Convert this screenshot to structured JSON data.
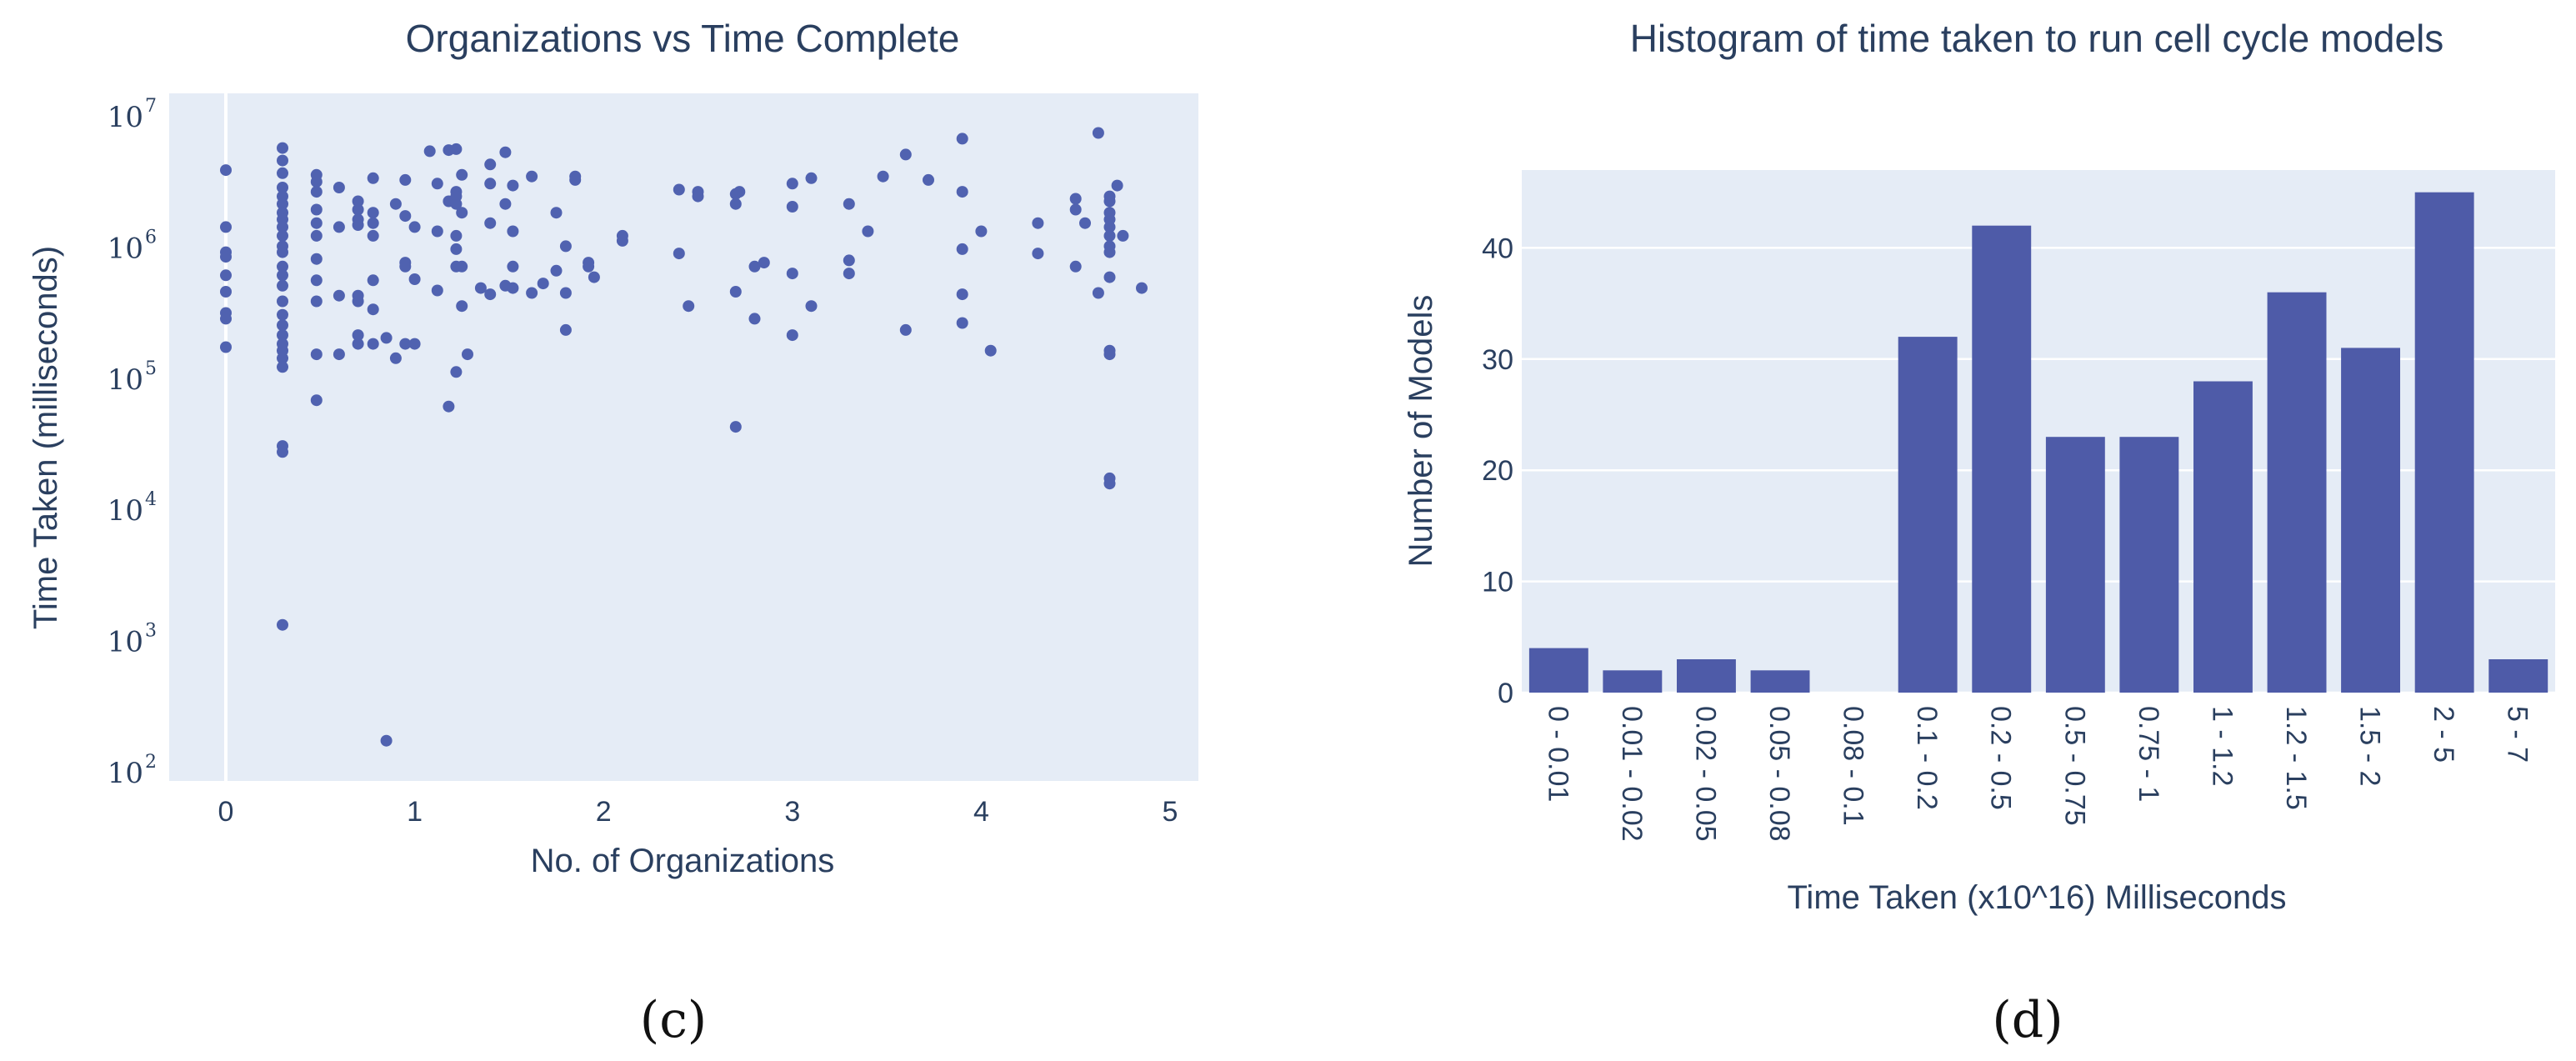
{
  "chart_data": [
    {
      "type": "scatter",
      "title": "Organizations vs Time Complete",
      "xlabel": "No. of Organizations",
      "ylabel": "Time Taken (milliseconds)",
      "x_ticks": [
        "0",
        "1",
        "2",
        "3",
        "4",
        "5"
      ],
      "xlim": [
        -0.3,
        5.15
      ],
      "y_scale": "log",
      "y_tick_exponents": [
        "2",
        "3",
        "4",
        "5",
        "6",
        "7"
      ],
      "y_tick_base": "10",
      "ylim": [
        100,
        10000000
      ],
      "grid": "vertical zero line only",
      "color": "#5062b0",
      "points": [
        {
          "x": 0,
          "y": 3800000
        },
        {
          "x": 0,
          "y": 1400000
        },
        {
          "x": 0,
          "y": 900000
        },
        {
          "x": 0,
          "y": 830000
        },
        {
          "x": 0,
          "y": 600000
        },
        {
          "x": 0,
          "y": 450000
        },
        {
          "x": 0,
          "y": 310000
        },
        {
          "x": 0,
          "y": 280000
        },
        {
          "x": 0,
          "y": 170000
        },
        {
          "x": 0.3,
          "y": 5600000
        },
        {
          "x": 0.3,
          "y": 4500000
        },
        {
          "x": 0.3,
          "y": 3600000
        },
        {
          "x": 0.3,
          "y": 2800000
        },
        {
          "x": 0.3,
          "y": 2400000
        },
        {
          "x": 0.3,
          "y": 2100000
        },
        {
          "x": 0.3,
          "y": 1800000
        },
        {
          "x": 0.3,
          "y": 1600000
        },
        {
          "x": 0.3,
          "y": 1400000
        },
        {
          "x": 0.3,
          "y": 1200000
        },
        {
          "x": 0.3,
          "y": 1000000
        },
        {
          "x": 0.3,
          "y": 900000
        },
        {
          "x": 0.3,
          "y": 700000
        },
        {
          "x": 0.3,
          "y": 600000
        },
        {
          "x": 0.3,
          "y": 500000
        },
        {
          "x": 0.3,
          "y": 380000
        },
        {
          "x": 0.3,
          "y": 300000
        },
        {
          "x": 0.3,
          "y": 250000
        },
        {
          "x": 0.3,
          "y": 210000
        },
        {
          "x": 0.3,
          "y": 180000
        },
        {
          "x": 0.3,
          "y": 160000
        },
        {
          "x": 0.3,
          "y": 140000
        },
        {
          "x": 0.3,
          "y": 120000
        },
        {
          "x": 0.3,
          "y": 30000
        },
        {
          "x": 0.3,
          "y": 27000
        },
        {
          "x": 0.3,
          "y": 1300
        },
        {
          "x": 0.48,
          "y": 3500000
        },
        {
          "x": 0.48,
          "y": 3100000
        },
        {
          "x": 0.48,
          "y": 2600000
        },
        {
          "x": 0.48,
          "y": 1900000
        },
        {
          "x": 0.48,
          "y": 1500000
        },
        {
          "x": 0.48,
          "y": 1200000
        },
        {
          "x": 0.48,
          "y": 800000
        },
        {
          "x": 0.48,
          "y": 550000
        },
        {
          "x": 0.48,
          "y": 380000
        },
        {
          "x": 0.48,
          "y": 150000
        },
        {
          "x": 0.48,
          "y": 67000
        },
        {
          "x": 0.6,
          "y": 2800000
        },
        {
          "x": 0.6,
          "y": 1400000
        },
        {
          "x": 0.6,
          "y": 420000
        },
        {
          "x": 0.6,
          "y": 150000
        },
        {
          "x": 0.7,
          "y": 2200000
        },
        {
          "x": 0.7,
          "y": 1900000
        },
        {
          "x": 0.7,
          "y": 1600000
        },
        {
          "x": 0.7,
          "y": 1450000
        },
        {
          "x": 0.7,
          "y": 420000
        },
        {
          "x": 0.7,
          "y": 380000
        },
        {
          "x": 0.7,
          "y": 210000
        },
        {
          "x": 0.7,
          "y": 180000
        },
        {
          "x": 0.78,
          "y": 3300000
        },
        {
          "x": 0.78,
          "y": 1800000
        },
        {
          "x": 0.78,
          "y": 1500000
        },
        {
          "x": 0.78,
          "y": 1200000
        },
        {
          "x": 0.78,
          "y": 550000
        },
        {
          "x": 0.78,
          "y": 330000
        },
        {
          "x": 0.78,
          "y": 180000
        },
        {
          "x": 0.85,
          "y": 170
        },
        {
          "x": 0.85,
          "y": 200000
        },
        {
          "x": 0.9,
          "y": 2100000
        },
        {
          "x": 0.9,
          "y": 140000
        },
        {
          "x": 0.95,
          "y": 3200000
        },
        {
          "x": 0.95,
          "y": 1700000
        },
        {
          "x": 0.95,
          "y": 750000
        },
        {
          "x": 0.95,
          "y": 700000
        },
        {
          "x": 0.95,
          "y": 180000
        },
        {
          "x": 1.0,
          "y": 1400000
        },
        {
          "x": 1.0,
          "y": 560000
        },
        {
          "x": 1.0,
          "y": 180000
        },
        {
          "x": 1.08,
          "y": 5300000
        },
        {
          "x": 1.12,
          "y": 3000000
        },
        {
          "x": 1.12,
          "y": 1300000
        },
        {
          "x": 1.12,
          "y": 460000
        },
        {
          "x": 1.18,
          "y": 5400000
        },
        {
          "x": 1.18,
          "y": 2200000
        },
        {
          "x": 1.18,
          "y": 60000
        },
        {
          "x": 1.22,
          "y": 5500000
        },
        {
          "x": 1.22,
          "y": 2600000
        },
        {
          "x": 1.22,
          "y": 2400000
        },
        {
          "x": 1.22,
          "y": 2100000
        },
        {
          "x": 1.22,
          "y": 1200000
        },
        {
          "x": 1.22,
          "y": 950000
        },
        {
          "x": 1.22,
          "y": 700000
        },
        {
          "x": 1.22,
          "y": 110000
        },
        {
          "x": 1.25,
          "y": 3500000
        },
        {
          "x": 1.25,
          "y": 1800000
        },
        {
          "x": 1.25,
          "y": 700000
        },
        {
          "x": 1.25,
          "y": 350000
        },
        {
          "x": 1.28,
          "y": 150000
        },
        {
          "x": 1.35,
          "y": 480000
        },
        {
          "x": 1.4,
          "y": 4200000
        },
        {
          "x": 1.4,
          "y": 3000000
        },
        {
          "x": 1.4,
          "y": 1500000
        },
        {
          "x": 1.4,
          "y": 430000
        },
        {
          "x": 1.48,
          "y": 5200000
        },
        {
          "x": 1.48,
          "y": 2100000
        },
        {
          "x": 1.48,
          "y": 500000
        },
        {
          "x": 1.52,
          "y": 2900000
        },
        {
          "x": 1.52,
          "y": 1300000
        },
        {
          "x": 1.52,
          "y": 700000
        },
        {
          "x": 1.52,
          "y": 480000
        },
        {
          "x": 1.62,
          "y": 3400000
        },
        {
          "x": 1.62,
          "y": 440000
        },
        {
          "x": 1.68,
          "y": 520000
        },
        {
          "x": 1.75,
          "y": 1800000
        },
        {
          "x": 1.75,
          "y": 650000
        },
        {
          "x": 1.8,
          "y": 1000000
        },
        {
          "x": 1.8,
          "y": 440000
        },
        {
          "x": 1.8,
          "y": 230000
        },
        {
          "x": 1.85,
          "y": 3400000
        },
        {
          "x": 1.85,
          "y": 3200000
        },
        {
          "x": 1.92,
          "y": 750000
        },
        {
          "x": 1.92,
          "y": 700000
        },
        {
          "x": 1.95,
          "y": 580000
        },
        {
          "x": 2.1,
          "y": 1200000
        },
        {
          "x": 2.1,
          "y": 1100000
        },
        {
          "x": 2.4,
          "y": 2700000
        },
        {
          "x": 2.4,
          "y": 880000
        },
        {
          "x": 2.45,
          "y": 350000
        },
        {
          "x": 2.5,
          "y": 2600000
        },
        {
          "x": 2.5,
          "y": 2400000
        },
        {
          "x": 2.7,
          "y": 2500000
        },
        {
          "x": 2.7,
          "y": 2100000
        },
        {
          "x": 2.7,
          "y": 450000
        },
        {
          "x": 2.7,
          "y": 42000
        },
        {
          "x": 2.72,
          "y": 2600000
        },
        {
          "x": 2.8,
          "y": 700000
        },
        {
          "x": 2.8,
          "y": 280000
        },
        {
          "x": 2.85,
          "y": 750000
        },
        {
          "x": 3.0,
          "y": 3000000
        },
        {
          "x": 3.0,
          "y": 2000000
        },
        {
          "x": 3.0,
          "y": 620000
        },
        {
          "x": 3.0,
          "y": 210000
        },
        {
          "x": 3.1,
          "y": 3300000
        },
        {
          "x": 3.1,
          "y": 350000
        },
        {
          "x": 3.3,
          "y": 2100000
        },
        {
          "x": 3.3,
          "y": 780000
        },
        {
          "x": 3.3,
          "y": 620000
        },
        {
          "x": 3.4,
          "y": 1300000
        },
        {
          "x": 3.48,
          "y": 3400000
        },
        {
          "x": 3.6,
          "y": 5000000
        },
        {
          "x": 3.6,
          "y": 230000
        },
        {
          "x": 3.72,
          "y": 3200000
        },
        {
          "x": 3.9,
          "y": 6600000
        },
        {
          "x": 3.9,
          "y": 2600000
        },
        {
          "x": 3.9,
          "y": 950000
        },
        {
          "x": 3.9,
          "y": 430000
        },
        {
          "x": 3.9,
          "y": 260000
        },
        {
          "x": 4.0,
          "y": 1300000
        },
        {
          "x": 4.05,
          "y": 160000
        },
        {
          "x": 4.3,
          "y": 1500000
        },
        {
          "x": 4.3,
          "y": 880000
        },
        {
          "x": 4.5,
          "y": 2300000
        },
        {
          "x": 4.5,
          "y": 1900000
        },
        {
          "x": 4.5,
          "y": 700000
        },
        {
          "x": 4.55,
          "y": 1500000
        },
        {
          "x": 4.62,
          "y": 7300000
        },
        {
          "x": 4.62,
          "y": 440000
        },
        {
          "x": 4.68,
          "y": 2400000
        },
        {
          "x": 4.68,
          "y": 2200000
        },
        {
          "x": 4.68,
          "y": 1800000
        },
        {
          "x": 4.68,
          "y": 1600000
        },
        {
          "x": 4.68,
          "y": 1400000
        },
        {
          "x": 4.68,
          "y": 1200000
        },
        {
          "x": 4.68,
          "y": 1000000
        },
        {
          "x": 4.68,
          "y": 900000
        },
        {
          "x": 4.68,
          "y": 580000
        },
        {
          "x": 4.68,
          "y": 160000
        },
        {
          "x": 4.68,
          "y": 150000
        },
        {
          "x": 4.68,
          "y": 17000
        },
        {
          "x": 4.68,
          "y": 15500
        },
        {
          "x": 4.72,
          "y": 2900000
        },
        {
          "x": 4.75,
          "y": 1200000
        },
        {
          "x": 4.85,
          "y": 480000
        }
      ]
    },
    {
      "type": "bar",
      "title": "Histogram of time taken to run cell cycle models",
      "xlabel": "Time Taken (x10^16) Milliseconds",
      "ylabel": "Number of Models",
      "categories": [
        "0 - 0.01",
        "0.01 - 0.02",
        "0.02 - 0.05",
        "0.05 - 0.08",
        "0.08 - 0.1",
        "0.1 - 0.2",
        "0.2 - 0.5",
        "0.5 - 0.75",
        "0.75 - 1",
        "1 - 1.2",
        "1.2 - 1.5",
        "1.5 - 2",
        "2 - 5",
        "5 - 7"
      ],
      "values": [
        4,
        2,
        3,
        2,
        0,
        32,
        42,
        23,
        23,
        28,
        36,
        31,
        45,
        3
      ],
      "y_ticks": [
        "0",
        "10",
        "20",
        "30",
        "40"
      ],
      "ylim": [
        0,
        47
      ],
      "grid": "horizontal",
      "color": "#4e5ba8"
    }
  ],
  "captions": [
    "(c)",
    "(d)"
  ]
}
